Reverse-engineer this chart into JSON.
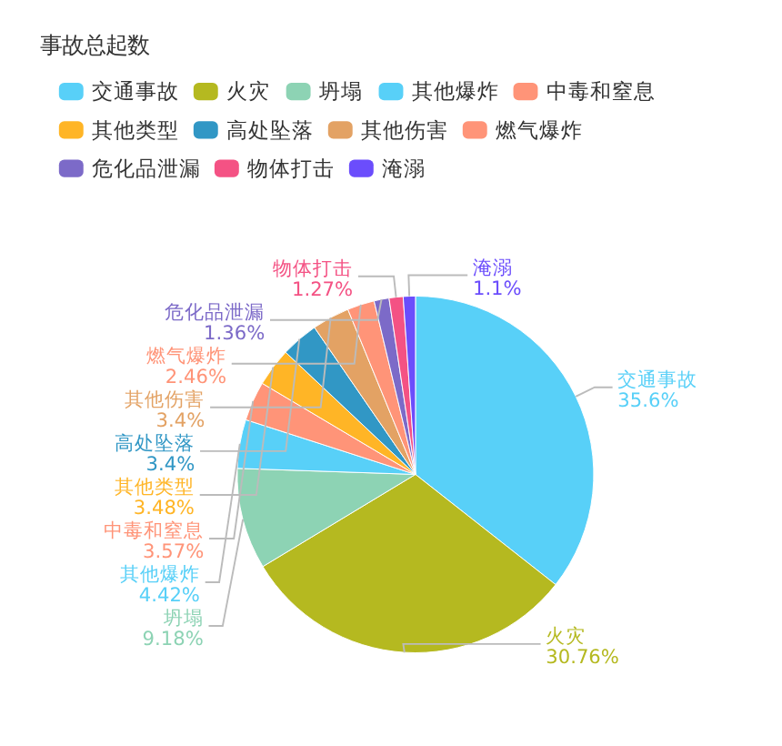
{
  "chart_data": {
    "type": "pie",
    "title": "事故总起数",
    "legend": "top left",
    "categories": [
      "交通事故",
      "火灾",
      "坍塌",
      "其他爆炸",
      "中毒和窒息",
      "其他类型",
      "高处坠落",
      "其他伤害",
      "燃气爆炸",
      "危化品泄漏",
      "物体打击",
      "淹溺"
    ],
    "values": [
      35.6,
      30.76,
      9.18,
      4.42,
      3.57,
      3.48,
      3.4,
      3.4,
      2.46,
      1.36,
      1.27,
      1.1
    ],
    "value_labels": [
      "35.6%",
      "30.76%",
      "9.18%",
      "4.42%",
      "3.57%",
      "3.48%",
      "3.4%",
      "3.4%",
      "2.46%",
      "1.36%",
      "1.27%",
      "1.1%"
    ],
    "colors": [
      "#58d0f8",
      "#b5b920",
      "#8dd3b4",
      "#58d0f8",
      "#ff9478",
      "#ffb526",
      "#3197c5",
      "#e3a264",
      "#ff9478",
      "#7c6ac8",
      "#f45284",
      "#6b4dfc"
    ]
  }
}
